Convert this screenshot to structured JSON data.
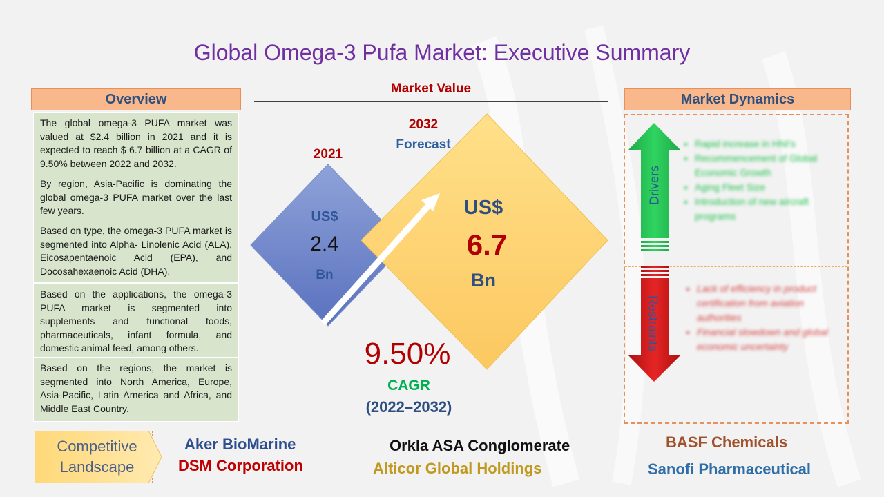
{
  "title": "Global Omega-3 Pufa Market: Executive Summary",
  "overview": {
    "heading": "Overview",
    "paragraphs": [
      "The global omega-3 PUFA market was valued at $2.4 billion in 2021 and it is expected to reach $ 6.7 billion at a CAGR of 9.50% between 2022 and 2032.",
      "By region, Asia-Pacific is dominating the global omega-3 PUFA market over the last few years.",
      "Based on type, the omega-3 PUFA market is segmented into Alpha- Linolenic Acid (ALA), Eicosapentaenoic Acid (EPA), and Docosahexaenoic Acid (DHA).",
      "Based on the applications, the omega-3 PUFA market is segmented into supplements and functional foods, pharmaceuticals, infant formula, and domestic animal feed, among others.",
      "Based on the regions, the market is segmented into North America, Europe, Asia-Pacific, Latin America and Africa, and Middle East Country."
    ]
  },
  "market_value": {
    "heading": "Market Value",
    "base": {
      "year": "2021",
      "currency": "US$",
      "value": "2.4",
      "unit": "Bn"
    },
    "forecast": {
      "year": "2032",
      "label": "Forecast",
      "currency": "US$",
      "value": "6.7",
      "unit": "Bn"
    },
    "cagr": {
      "value": "9.50%",
      "label": "CAGR",
      "period": "(2022–2032)"
    }
  },
  "dynamics": {
    "heading": "Market Dynamics",
    "drivers_label": "Drivers",
    "restraints_label": "Restraints",
    "drivers": [
      "Rapid increase in HNI's",
      "Recommencement of Global Economic Growth",
      "Aging Fleet Size",
      "Introduction of new aircraft programs"
    ],
    "restraints": [
      "Lack of efficiency in product certification from aviation authorities",
      "Financial slowdown and global economic uncertainty"
    ]
  },
  "competitive": {
    "label_line1": "Competitive",
    "label_line2": "Landscape",
    "companies": [
      "Aker BioMarine",
      "DSM Corporation",
      "Orkla ASA Conglomerate",
      "Alticor Global Holdings",
      "BASF Chemicals",
      "Sanofi Pharmaceutical"
    ]
  },
  "colors": {
    "title": "#7030a0",
    "header_fill": "#f8b88b",
    "overview_fill": "#d8e4cc",
    "accent_red": "#b00000",
    "navy": "#2f4f7f",
    "green": "#00b050",
    "gold": "#c09a20"
  }
}
